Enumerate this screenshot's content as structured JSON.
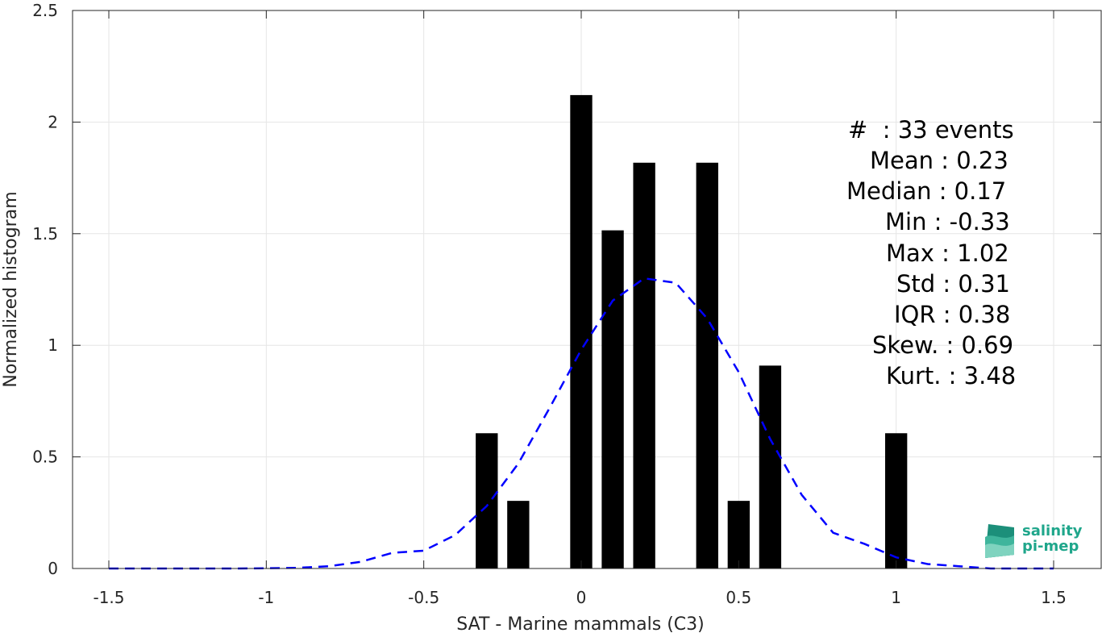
{
  "chart_data": {
    "type": "bar",
    "xlabel": "SAT - Marine mammals (C3)",
    "ylabel": "Normalized histogram",
    "xlim": [
      -1.5,
      1.5
    ],
    "ylim": [
      0,
      2.5
    ],
    "xticks": [
      "-1.5",
      "-1",
      "-0.5",
      "0",
      "0.5",
      "1",
      "1.5"
    ],
    "yticks": [
      "0",
      "0.5",
      "1",
      "1.5",
      "2",
      "2.5"
    ],
    "grid": true,
    "bar_color": "#000000",
    "bars": [
      {
        "x": -0.3,
        "value": 0.606
      },
      {
        "x": -0.2,
        "value": 0.303
      },
      {
        "x": 0.0,
        "value": 2.121
      },
      {
        "x": 0.1,
        "value": 1.515
      },
      {
        "x": 0.2,
        "value": 1.818
      },
      {
        "x": 0.4,
        "value": 1.818
      },
      {
        "x": 0.5,
        "value": 0.303
      },
      {
        "x": 0.6,
        "value": 0.909
      },
      {
        "x": 1.0,
        "value": 0.606
      }
    ],
    "bar_width": 0.07,
    "fit_curve": {
      "style": "dashed",
      "color": "#0000ff",
      "x": [
        -1.5,
        -1.4,
        -1.3,
        -1.2,
        -1.1,
        -1.0,
        -0.9,
        -0.8,
        -0.7,
        -0.6,
        -0.5,
        -0.4,
        -0.3,
        -0.2,
        -0.1,
        0.0,
        0.1,
        0.2,
        0.3,
        0.4,
        0.5,
        0.6,
        0.7,
        0.8,
        0.9,
        1.0,
        1.1,
        1.2,
        1.3,
        1.4,
        1.5
      ],
      "y": [
        0.0,
        0.0,
        0.0,
        0.0,
        0.0,
        0.001,
        0.003,
        0.01,
        0.03,
        0.07,
        0.08,
        0.15,
        0.28,
        0.47,
        0.72,
        0.98,
        1.2,
        1.3,
        1.28,
        1.12,
        0.88,
        0.58,
        0.33,
        0.16,
        0.11,
        0.05,
        0.02,
        0.01,
        0.0,
        0.0,
        0.0
      ]
    }
  },
  "stats": {
    "count": "#  : 33 events",
    "mean": "Mean : 0.23",
    "median": "Median : 0.17",
    "min": "Min : -0.33",
    "max": "Max : 1.02",
    "std": "Std : 0.31",
    "iqr": "IQR : 0.38",
    "skew": "Skew. : 0.69",
    "kurt": "Kurt. : 3.48"
  },
  "logo": {
    "line1": "salinity",
    "line2": "pi-mep",
    "color": "#1fa68b"
  }
}
